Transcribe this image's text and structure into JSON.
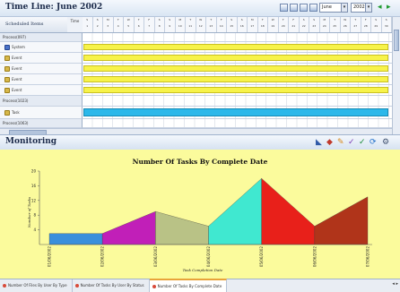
{
  "timeline": {
    "title": "Time Line: June 2002",
    "month_value": "June",
    "year_value": "2002",
    "left_header": "Scheduled Items",
    "time_header": "Time",
    "days": [
      {
        "dow": "S",
        "num": "1"
      },
      {
        "dow": "S",
        "num": "2"
      },
      {
        "dow": "M",
        "num": "3"
      },
      {
        "dow": "T",
        "num": "4"
      },
      {
        "dow": "W",
        "num": "5"
      },
      {
        "dow": "T",
        "num": "6"
      },
      {
        "dow": "F",
        "num": "7"
      },
      {
        "dow": "S",
        "num": "8"
      },
      {
        "dow": "S",
        "num": "9"
      },
      {
        "dow": "M",
        "num": "10"
      },
      {
        "dow": "T",
        "num": "11"
      },
      {
        "dow": "W",
        "num": "12"
      },
      {
        "dow": "T",
        "num": "13"
      },
      {
        "dow": "F",
        "num": "14"
      },
      {
        "dow": "S",
        "num": "15"
      },
      {
        "dow": "S",
        "num": "16"
      },
      {
        "dow": "M",
        "num": "17"
      },
      {
        "dow": "T",
        "num": "18"
      },
      {
        "dow": "W",
        "num": "19"
      },
      {
        "dow": "T",
        "num": "20"
      },
      {
        "dow": "F",
        "num": "21"
      },
      {
        "dow": "S",
        "num": "22"
      },
      {
        "dow": "S",
        "num": "23"
      },
      {
        "dow": "M",
        "num": "24"
      },
      {
        "dow": "T",
        "num": "25"
      },
      {
        "dow": "W",
        "num": "26"
      },
      {
        "dow": "T",
        "num": "27"
      },
      {
        "dow": "F",
        "num": "28"
      },
      {
        "dow": "S",
        "num": "29"
      },
      {
        "dow": "S",
        "num": "30"
      }
    ],
    "rows": [
      {
        "label": "Process(097)",
        "kind": "group"
      },
      {
        "label": "System",
        "kind": "item",
        "icon": "system-icon",
        "bar": "yellow"
      },
      {
        "label": "Event",
        "kind": "item",
        "icon": "task-icon",
        "bar": "yellow"
      },
      {
        "label": "Event",
        "kind": "item",
        "icon": "task-icon",
        "bar": "yellow"
      },
      {
        "label": "Event",
        "kind": "item",
        "icon": "task-icon",
        "bar": "yellow"
      },
      {
        "label": "Event",
        "kind": "item",
        "icon": "task-icon",
        "bar": "yellow"
      },
      {
        "label": "Process(1023)",
        "kind": "group"
      },
      {
        "label": "Task",
        "kind": "item",
        "icon": "task-icon",
        "bar": "cyan"
      },
      {
        "label": "Process(1063)",
        "kind": "group"
      }
    ]
  },
  "monitoring": {
    "title": "Monitoring"
  },
  "chart_data": {
    "type": "area",
    "title": "Number Of Tasks By Complete Date",
    "xlabel": "Task Completion Date",
    "ylabel": "Number of Tasks",
    "ylim": [
      0,
      20
    ],
    "yticks": [
      "4",
      "8",
      "12",
      "16",
      "20"
    ],
    "categories": [
      "01/06/2002",
      "02/06/2002",
      "03/06/2002",
      "04/06/2002",
      "05/06/2002",
      "06/06/2002",
      "07/06/2002"
    ],
    "values": [
      3,
      3,
      9,
      5,
      18,
      5,
      13
    ],
    "segment_colors": [
      "#3a8fdc",
      "#c11fb8",
      "#b9c286",
      "#40e8d0",
      "#e8201a",
      "#b0341a"
    ]
  },
  "tabs": [
    {
      "label": "Number Of Files By User By Type",
      "active": false
    },
    {
      "label": "Number Of Tasks By User By Status",
      "active": false
    },
    {
      "label": "Number Of Tasks By Complete Date",
      "active": true
    }
  ],
  "tab_nav": "◂ ▸"
}
